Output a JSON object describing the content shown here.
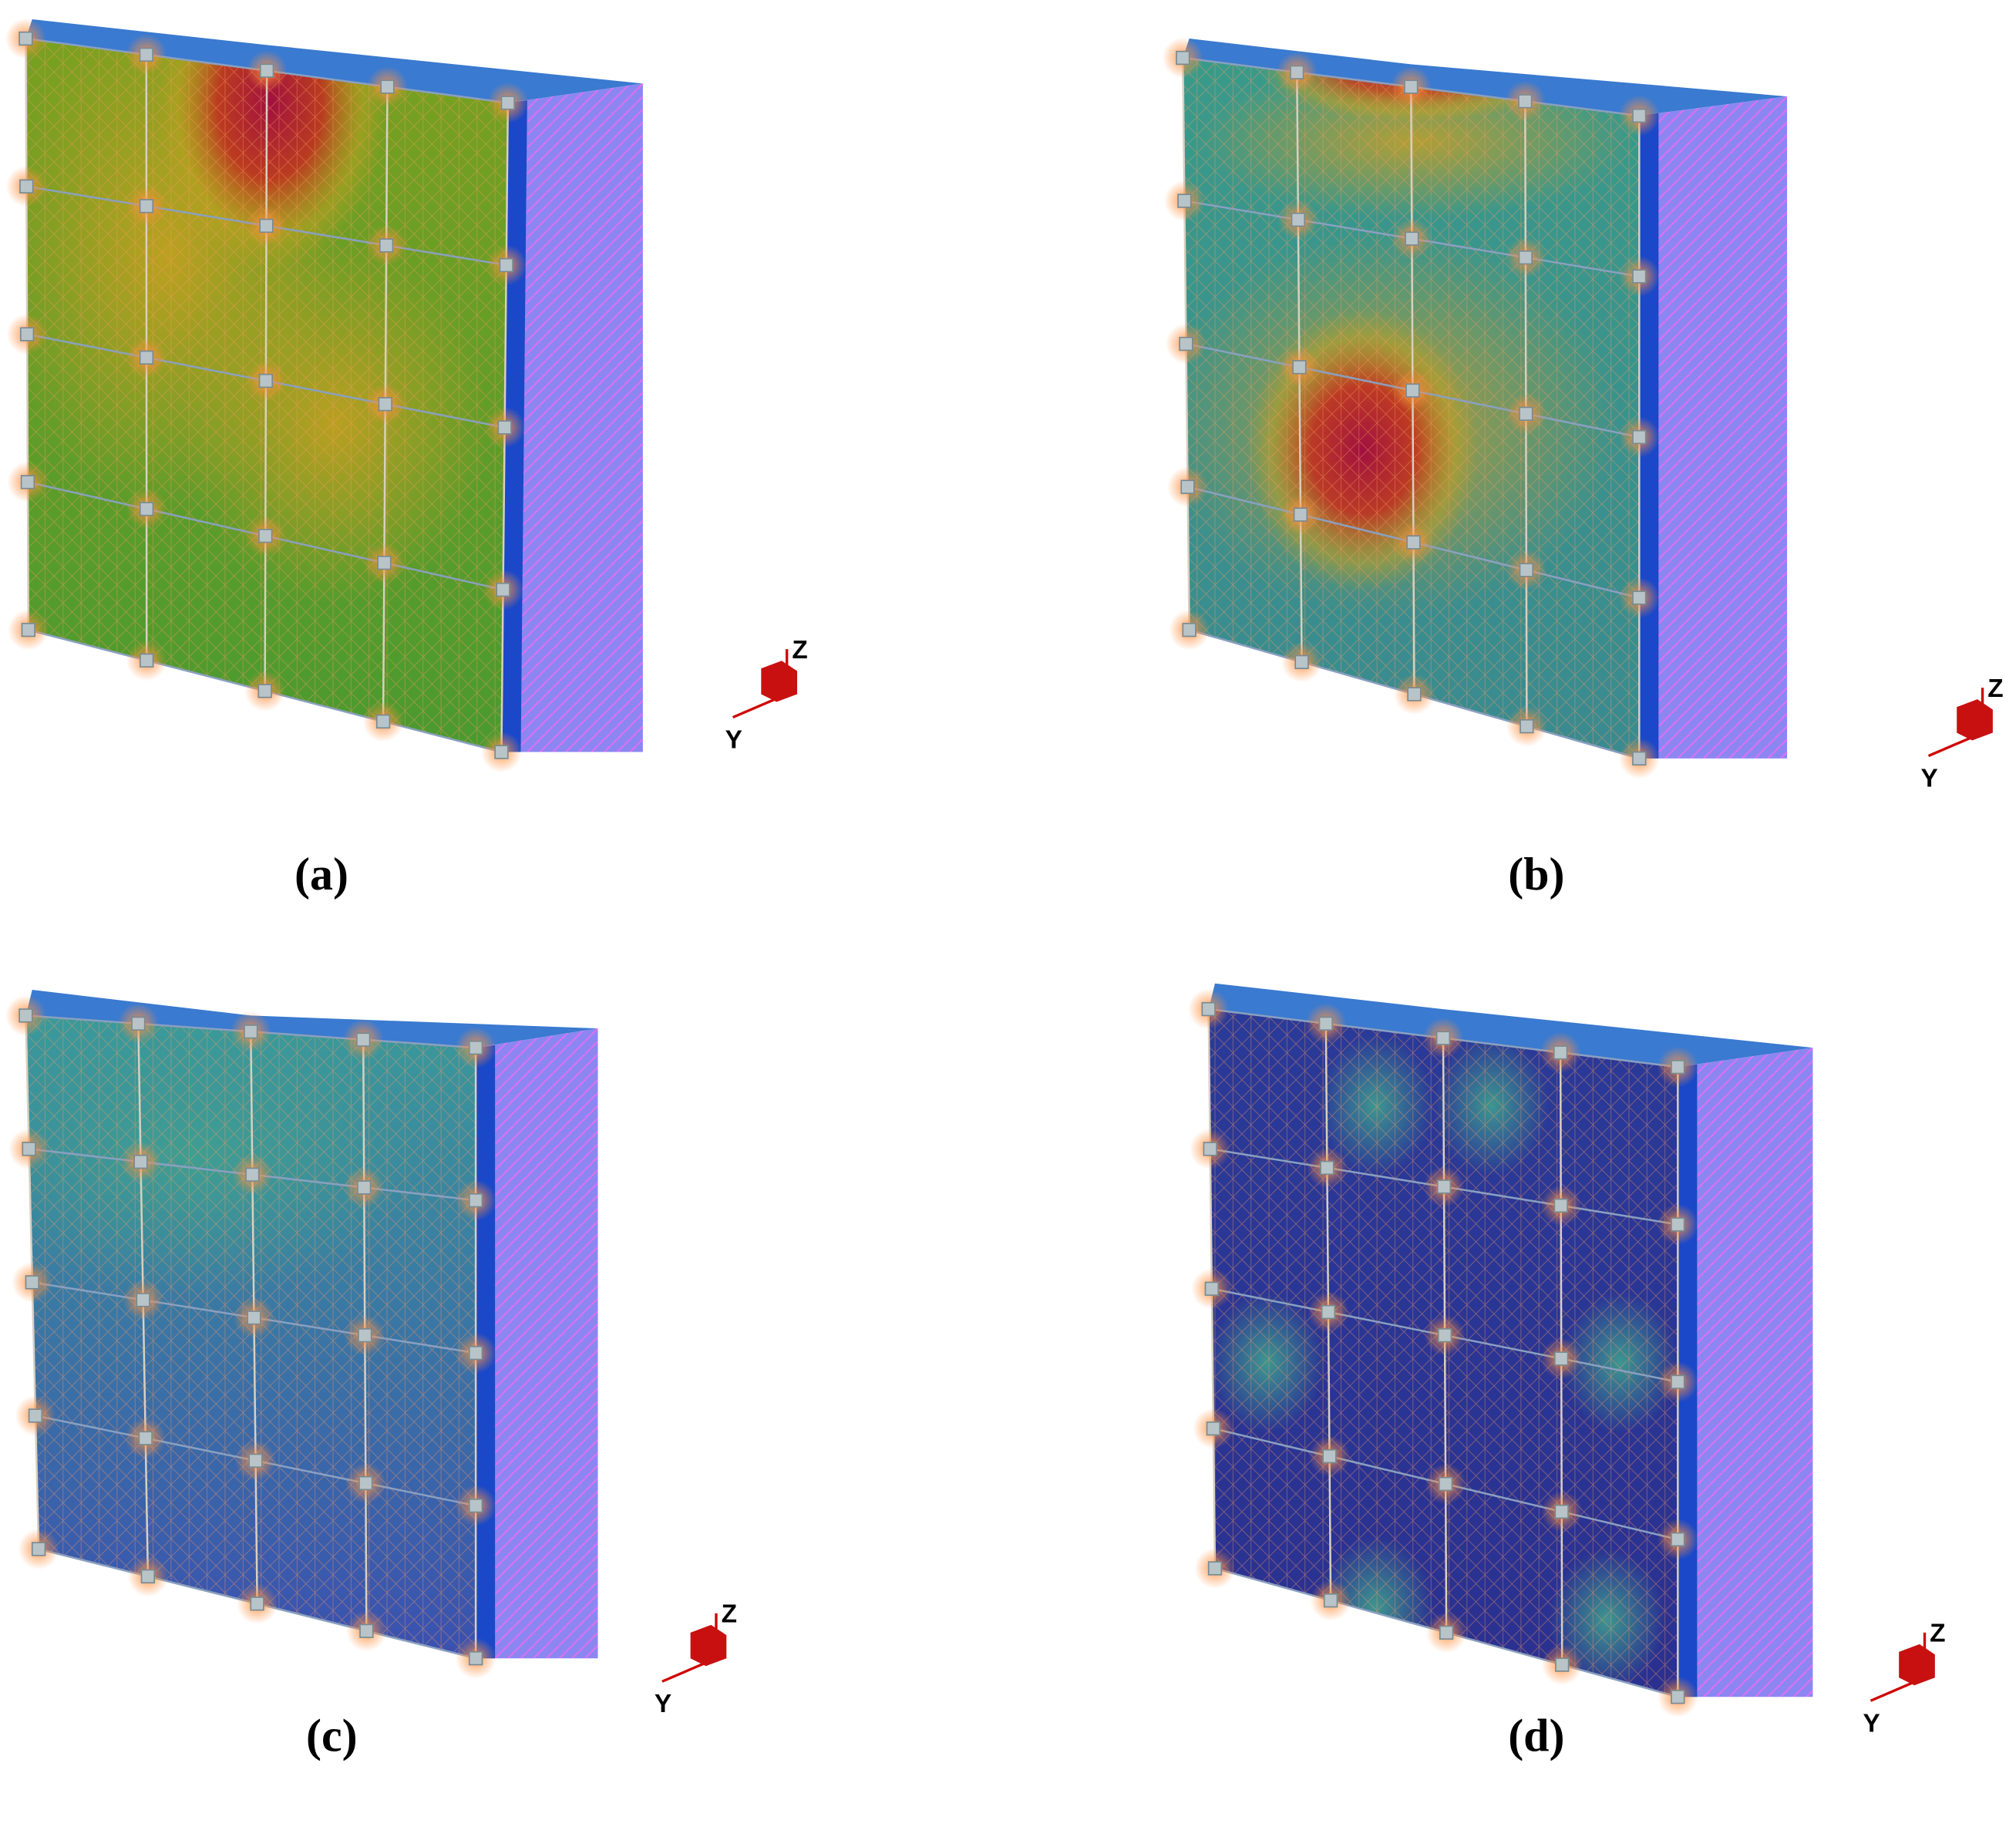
{
  "panels": [
    {
      "label": "(a)",
      "axis_labels": {
        "z": "Z",
        "y": "Y"
      }
    },
    {
      "label": "(b)",
      "axis_labels": {
        "z": "Z",
        "y": "Y"
      }
    },
    {
      "label": "(c)",
      "axis_labels": {
        "z": "Z",
        "y": "Y"
      }
    },
    {
      "label": "(d)",
      "axis_labels": {
        "z": "Z",
        "y": "Y"
      }
    }
  ]
}
